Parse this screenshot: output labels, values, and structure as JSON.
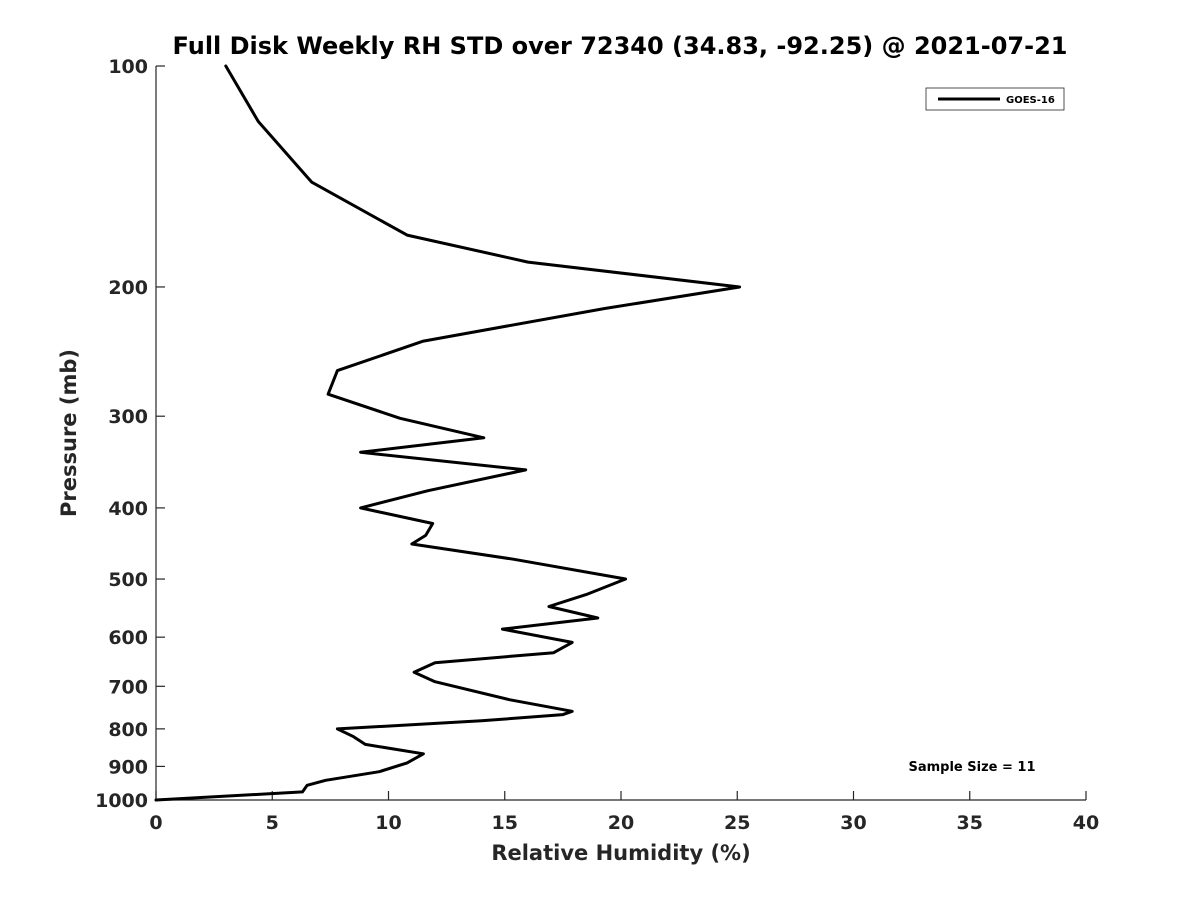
{
  "chart_data": {
    "type": "line",
    "title": "Full Disk Weekly RH STD over 72340 (34.83, -92.25) @ 2021-07-21",
    "xlabel": "Relative Humidity (%)",
    "ylabel": "Pressure (mb)",
    "xlim": [
      0,
      40
    ],
    "ylim": [
      100,
      1000
    ],
    "yscale": "log",
    "y_reversed": true,
    "xticks": [
      0,
      5,
      10,
      15,
      20,
      25,
      30,
      35,
      40
    ],
    "yticks": [
      100,
      200,
      300,
      400,
      500,
      600,
      700,
      800,
      900,
      1000
    ],
    "grid": false,
    "legend_position": "top-right",
    "annotation": "Sample Size = 11",
    "series": [
      {
        "name": "GOES-16",
        "color": "#000000",
        "x": [
          3.0,
          4.4,
          6.7,
          10.8,
          16.0,
          25.1,
          19.3,
          11.5,
          7.8,
          7.4,
          10.5,
          14.1,
          8.8,
          15.9,
          11.7,
          8.8,
          11.9,
          11.6,
          11.0,
          15.4,
          20.2,
          18.5,
          16.9,
          19.0,
          14.9,
          17.9,
          17.1,
          12.0,
          11.1,
          12.0,
          15.2,
          17.9,
          17.5,
          14.0,
          7.8,
          8.5,
          9.0,
          11.5,
          10.8,
          9.6,
          7.3,
          6.5,
          6.3,
          0.0
        ],
        "y": [
          100,
          119,
          144,
          170,
          185,
          200,
          214,
          237,
          260,
          280,
          302,
          321,
          336,
          355,
          379,
          400,
          420,
          436,
          448,
          470,
          500,
          525,
          545,
          565,
          585,
          610,
          630,
          650,
          670,
          690,
          730,
          757,
          765,
          780,
          800,
          820,
          840,
          865,
          890,
          915,
          940,
          955,
          975,
          1000
        ]
      }
    ]
  }
}
